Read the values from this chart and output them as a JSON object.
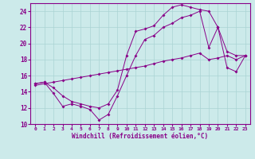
{
  "title": "",
  "xlabel": "Windchill (Refroidissement éolien,°C)",
  "ylabel": "",
  "background_color": "#cceaea",
  "grid_color": "#aad4d4",
  "line_color": "#880088",
  "xlim": [
    -0.5,
    23.5
  ],
  "ylim": [
    10,
    25
  ],
  "xticks": [
    0,
    1,
    2,
    3,
    4,
    5,
    6,
    7,
    8,
    9,
    10,
    11,
    12,
    13,
    14,
    15,
    16,
    17,
    18,
    19,
    20,
    21,
    22,
    23
  ],
  "yticks": [
    10,
    12,
    14,
    16,
    18,
    20,
    22,
    24
  ],
  "series": [
    {
      "x": [
        0,
        1,
        2,
        3,
        4,
        5,
        6,
        7,
        8,
        9,
        10,
        11,
        12,
        13,
        14,
        15,
        16,
        17,
        18,
        19,
        20,
        21,
        22,
        23
      ],
      "y": [
        15.0,
        15.2,
        13.8,
        12.2,
        12.5,
        12.2,
        11.8,
        10.5,
        11.2,
        13.5,
        16.0,
        18.5,
        20.5,
        21.0,
        22.0,
        22.5,
        23.2,
        23.5,
        24.0,
        19.5,
        22.0,
        17.0,
        16.5,
        18.5
      ]
    },
    {
      "x": [
        0,
        1,
        2,
        3,
        4,
        5,
        6,
        7,
        8,
        9,
        10,
        11,
        12,
        13,
        14,
        15,
        16,
        17,
        18,
        19,
        20,
        21,
        22,
        23
      ],
      "y": [
        15.0,
        15.2,
        14.5,
        13.5,
        12.8,
        12.5,
        12.2,
        12.0,
        12.5,
        14.2,
        18.5,
        21.5,
        21.8,
        22.2,
        23.5,
        24.5,
        24.8,
        24.5,
        24.2,
        24.0,
        22.0,
        19.0,
        18.5,
        18.5
      ]
    },
    {
      "x": [
        0,
        1,
        2,
        3,
        4,
        5,
        6,
        7,
        8,
        9,
        10,
        11,
        12,
        13,
        14,
        15,
        16,
        17,
        18,
        19,
        20,
        21,
        22,
        23
      ],
      "y": [
        14.8,
        15.0,
        15.2,
        15.4,
        15.6,
        15.8,
        16.0,
        16.2,
        16.4,
        16.6,
        16.8,
        17.0,
        17.2,
        17.5,
        17.8,
        18.0,
        18.2,
        18.5,
        18.8,
        18.0,
        18.2,
        18.5,
        18.0,
        18.5
      ]
    }
  ]
}
